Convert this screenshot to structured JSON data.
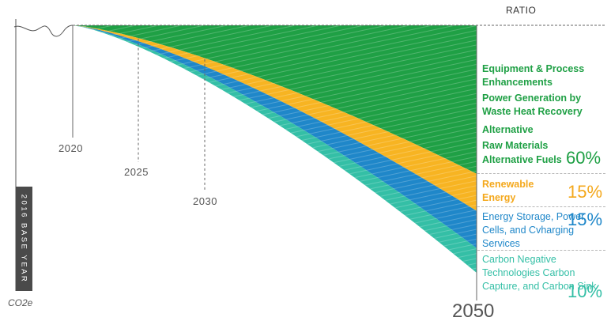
{
  "chart_data": {
    "type": "area",
    "title": "",
    "legend_title": "RATIO",
    "x_axis_label": "CO2e",
    "base_year_label": "2016 BASE YEAR",
    "year_markers": [
      "2020",
      "2025",
      "2030"
    ],
    "end_year": "2050",
    "segments": [
      {
        "name": "Green",
        "share": 60,
        "percent_label": "60%",
        "color": "#1fa045",
        "labels": [
          "Equipment & Process Enhancements",
          "Power Generation by Waste Heat Recovery",
          "Alternative Raw Materials",
          "Alternative Fuels"
        ]
      },
      {
        "name": "Yellow",
        "share": 15,
        "percent_label": "15%",
        "color": "#f7b422",
        "labels": [
          "Renewable Energy"
        ]
      },
      {
        "name": "Blue",
        "share": 15,
        "percent_label": "15%",
        "color": "#1f87c9",
        "labels": [
          "Energy Storage, Power Cells, and Cvharging Services"
        ]
      },
      {
        "name": "Teal",
        "share": 10,
        "percent_label": "10%",
        "color": "#34bfa6",
        "labels": [
          "Carbon Negative Technologies Carbon Capture, and Carbon Sink"
        ]
      }
    ]
  }
}
